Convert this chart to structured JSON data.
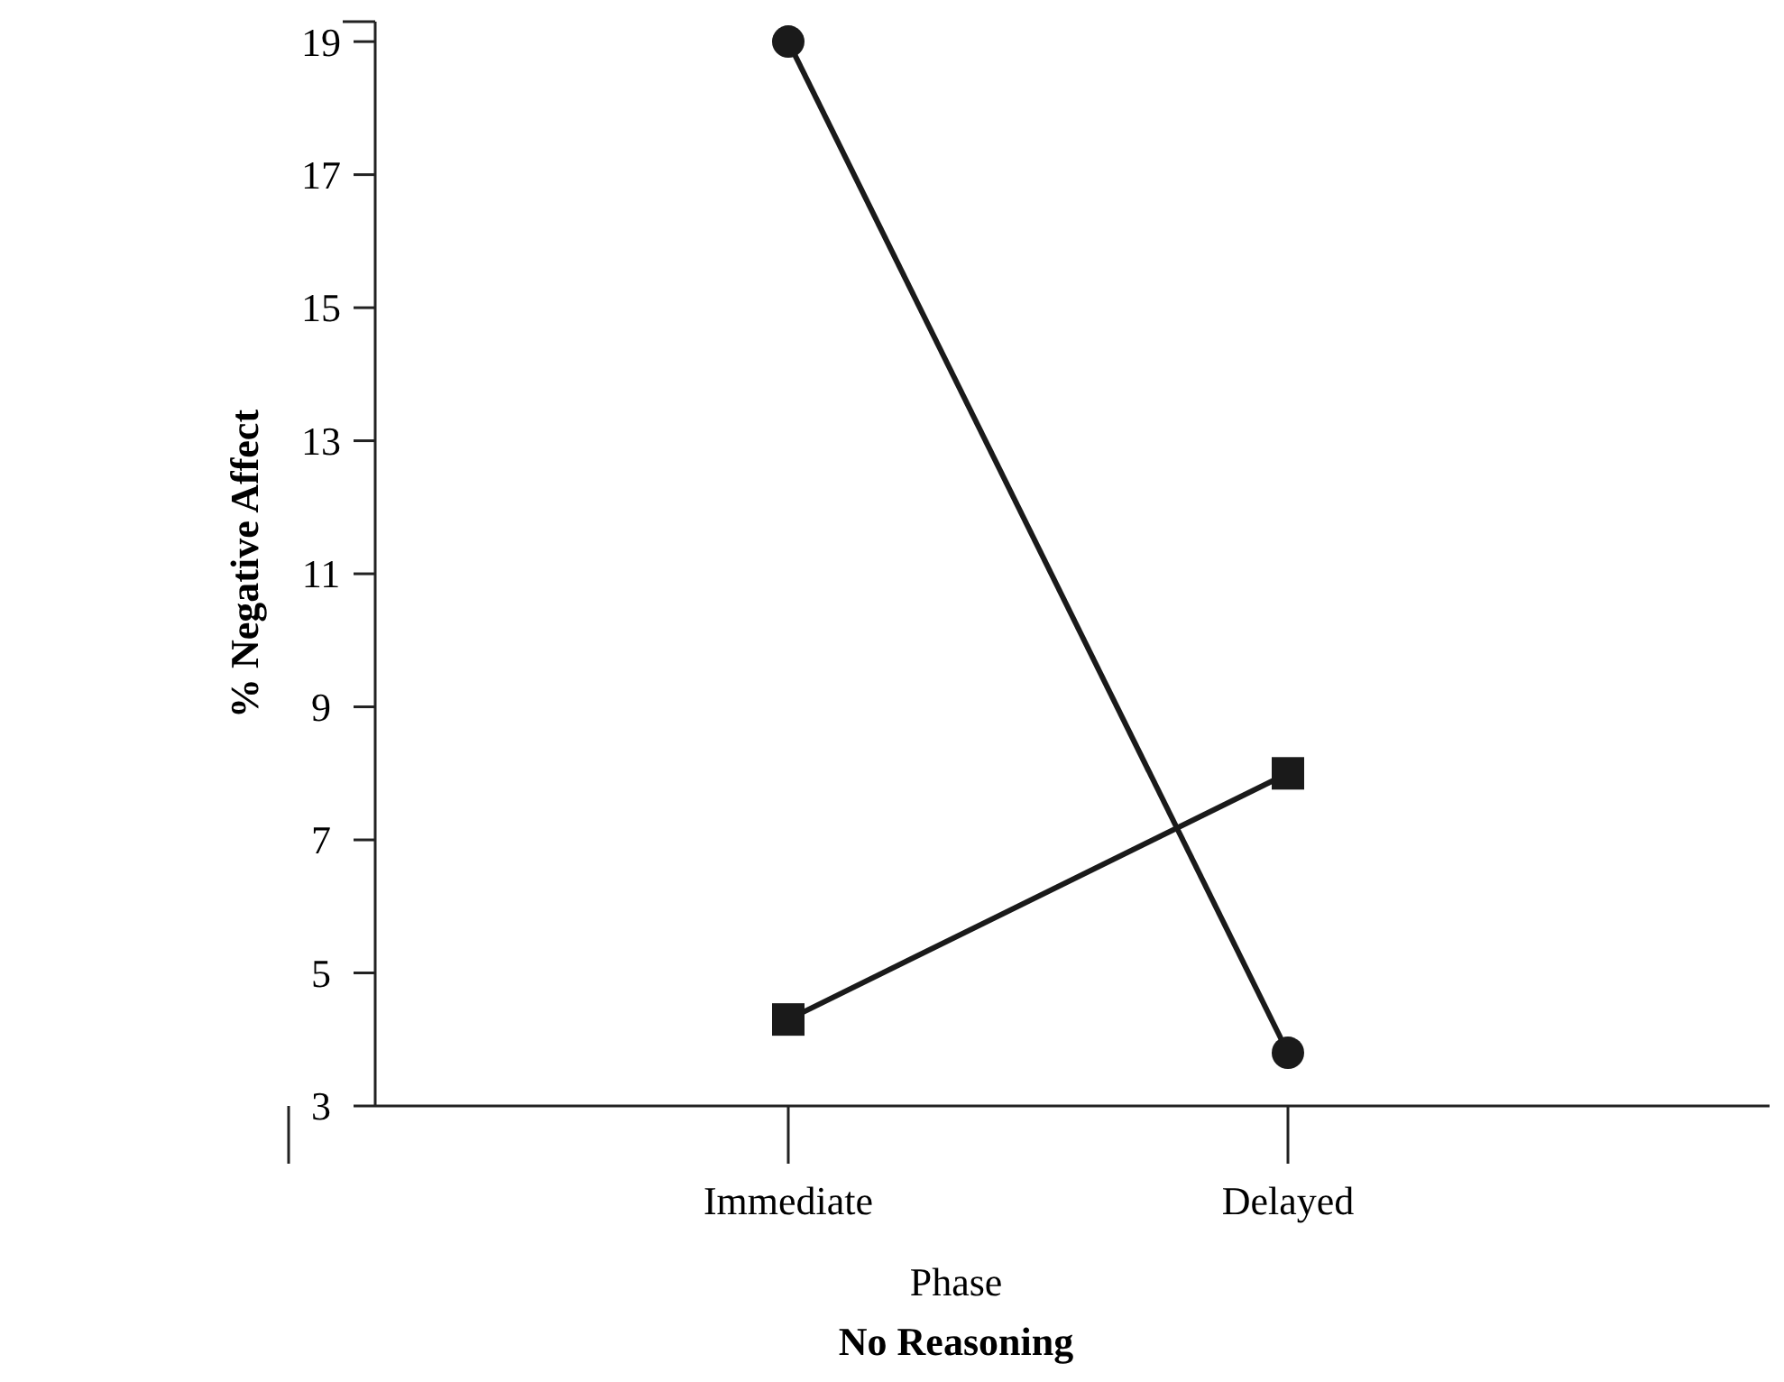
{
  "chart_data": {
    "type": "line",
    "title": "No Reasoning",
    "xlabel": "Phase",
    "ylabel": "% Negative Affect",
    "categories": [
      null,
      "Immediate",
      "Delayed",
      null
    ],
    "series": [
      {
        "color": "#1a1a1a",
        "marker": "circle",
        "values": [
          null,
          19,
          3.8,
          null
        ]
      },
      {
        "color": "#1a1a1a",
        "marker": "square",
        "values": [
          null,
          4.3,
          8.0,
          null
        ]
      }
    ],
    "ylim": [
      3,
      19.3
    ],
    "yticks": [
      3,
      5,
      7,
      9,
      11,
      13,
      15,
      17,
      19
    ],
    "grid": false,
    "line_style": "solid"
  }
}
